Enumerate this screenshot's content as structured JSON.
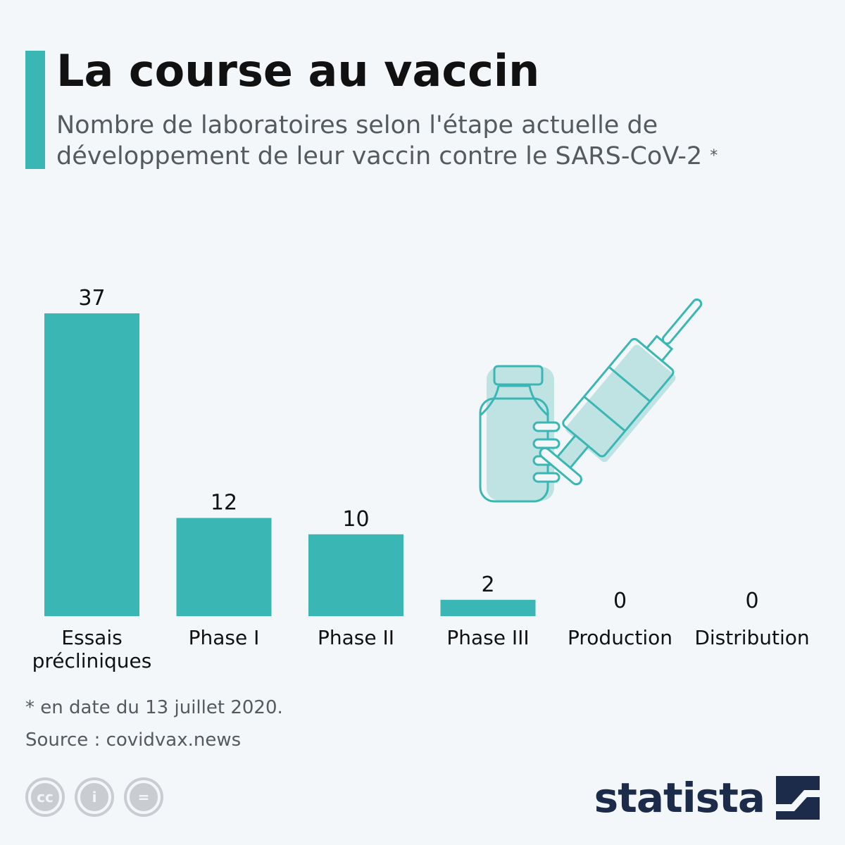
{
  "header": {
    "title": "La course au vaccin",
    "subtitle": "Nombre de laboratoires selon l'étape actuelle de développement de leur vaccin contre le SARS-CoV-2",
    "subtitle_marker": "*"
  },
  "chart_data": {
    "type": "bar",
    "title": "La course au vaccin",
    "subtitle": "Nombre de laboratoires selon l'étape actuelle de développement de leur vaccin contre le SARS-CoV-2 *",
    "categories": [
      [
        "Essais",
        "précliniques"
      ],
      [
        "Phase I"
      ],
      [
        "Phase II"
      ],
      [
        "Phase III"
      ],
      [
        "Production"
      ],
      [
        "Distribution"
      ]
    ],
    "values": [
      37,
      12,
      10,
      2,
      0,
      0
    ],
    "xlabel": "",
    "ylabel": "",
    "ylim": [
      0,
      37
    ],
    "grid": false,
    "data_labels": true,
    "bar_color": "#3ab7b5"
  },
  "footer": {
    "footnote": "* en date du 13 juillet 2020.",
    "source": "Source : covidvax.news",
    "license_icons": [
      "cc-icon",
      "attribution-icon",
      "no-derivatives-icon"
    ],
    "license_glyphs": [
      "cc",
      "i",
      "="
    ],
    "brand": "statista"
  },
  "colors": {
    "accent": "#3ab7b5",
    "illustration_fill": "#bfe3e3",
    "brand": "#1b2b49",
    "text": "#111111",
    "muted": "#555a5f"
  }
}
